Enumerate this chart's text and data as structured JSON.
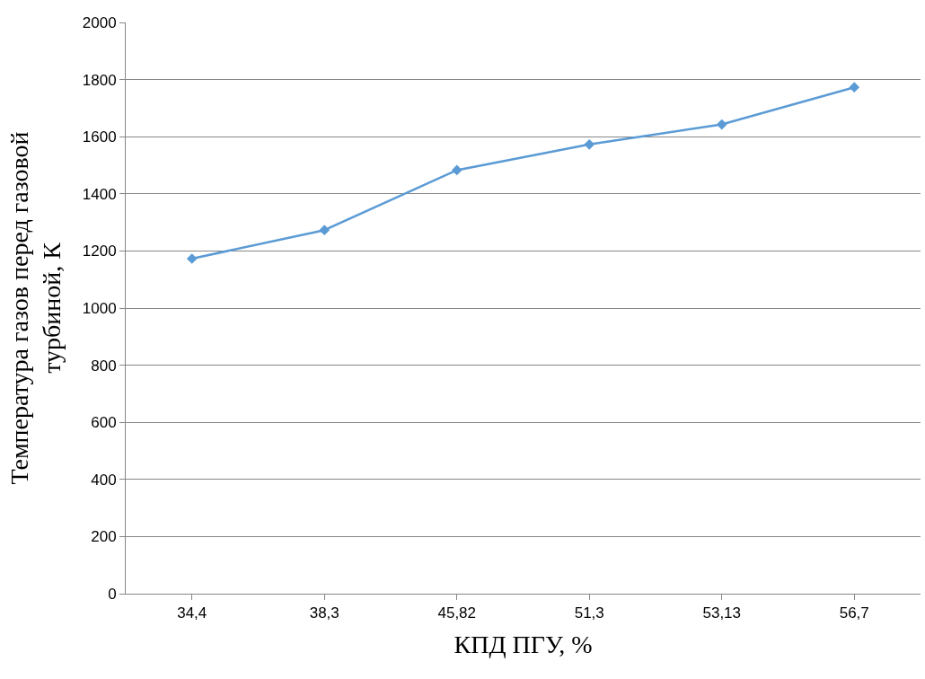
{
  "chart_data": {
    "type": "line",
    "xlabel": "КПД ПГУ, %",
    "ylabel": "Температура газов перед газовой\nтурбиной, К",
    "categories": [
      "34,4",
      "38,3",
      "45,82",
      "51,3",
      "53,13",
      "56,7"
    ],
    "series": [
      {
        "color": "#5b9bd5",
        "values": [
          1173,
          1273,
          1483,
          1573,
          1643,
          1773
        ]
      }
    ],
    "ylim": [
      0,
      2000
    ],
    "yticks": [
      0,
      200,
      400,
      600,
      800,
      1000,
      1200,
      1400,
      1600,
      1800,
      2000
    ],
    "grid": "y",
    "legend": false,
    "marker": "diamond",
    "line_style": "solid"
  }
}
